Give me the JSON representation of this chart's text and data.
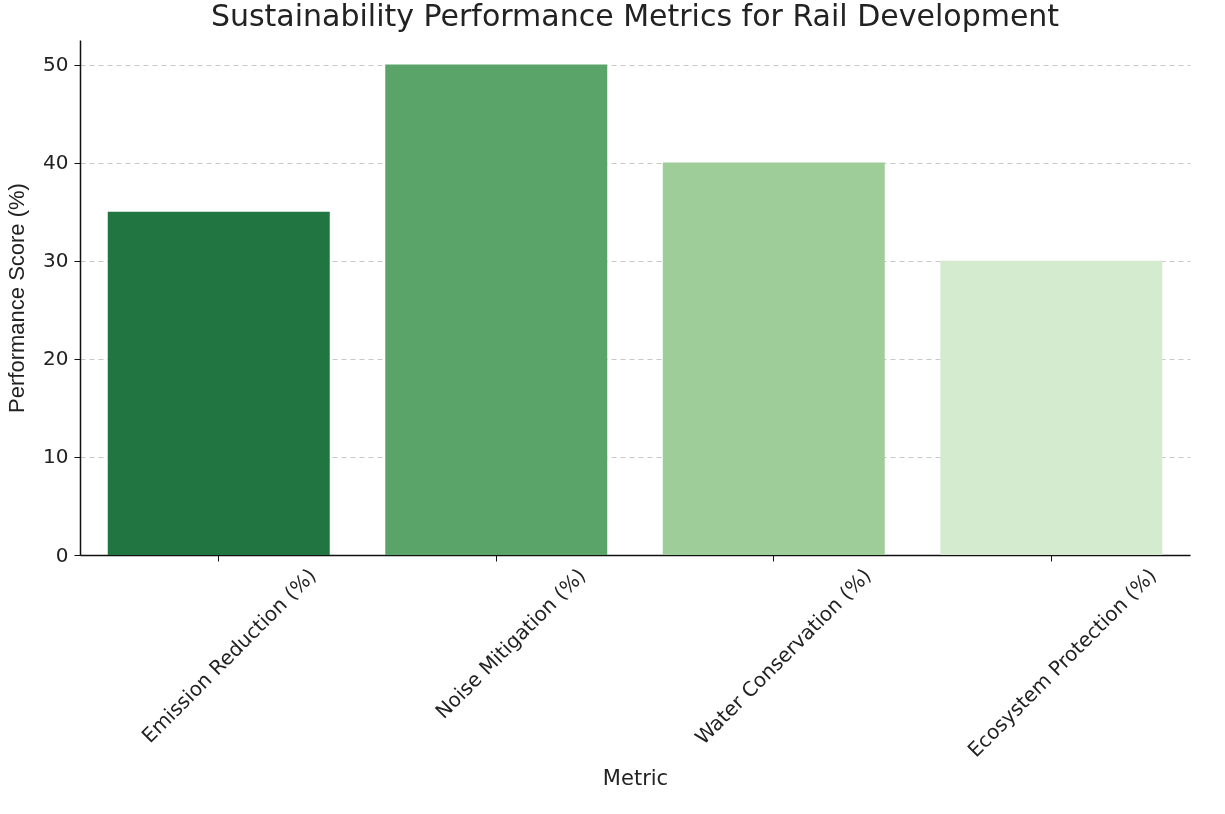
{
  "chart_data": {
    "type": "bar",
    "title": "Sustainability Performance Metrics for Rail Development",
    "xlabel": "Metric",
    "ylabel": "Performance Score (%)",
    "categories": [
      "Emission Reduction (%)",
      "Noise Mitigation (%)",
      "Water Conservation (%)",
      "Ecosystem Protection (%)"
    ],
    "values": [
      35,
      50,
      40,
      30
    ],
    "colors": [
      "#217541",
      "#5aa469",
      "#9fcd99",
      "#d5ebd0"
    ],
    "ylim": [
      0,
      52.5
    ],
    "yticks": [
      0,
      10,
      20,
      30,
      40,
      50
    ],
    "grid": "y"
  }
}
